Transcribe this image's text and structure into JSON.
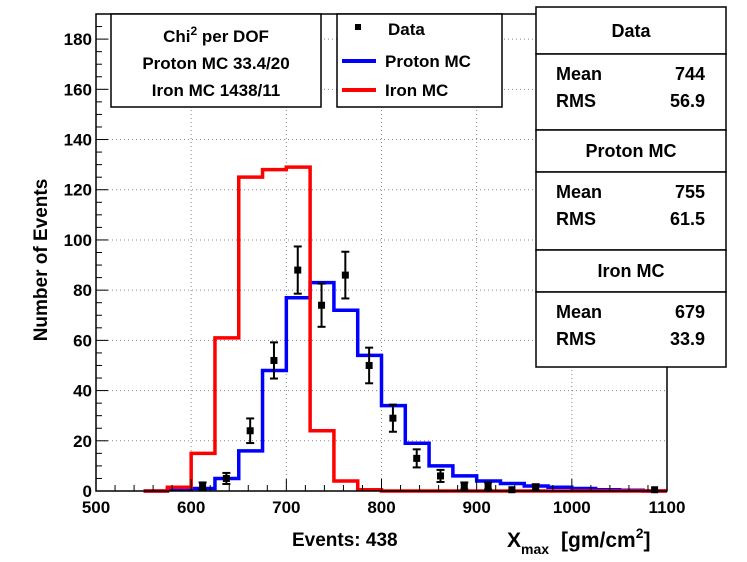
{
  "chart_data": {
    "type": "histogram",
    "xlabel": "X",
    "xlabel_sub": "max",
    "xlabel_unit_prefix": "[gm/cm",
    "xlabel_unit_sup": "2",
    "xlabel_unit_suffix": "]",
    "ylabel": "Number of Events",
    "events_label": "Events: 438",
    "xlim": [
      500,
      1100
    ],
    "ylim": [
      0,
      190
    ],
    "x_ticks": [
      500,
      600,
      700,
      800,
      900,
      1000,
      1100
    ],
    "y_ticks": [
      0,
      20,
      40,
      60,
      80,
      100,
      120,
      140,
      160,
      180
    ],
    "grid": true,
    "bin_edges": [
      550,
      575,
      600,
      625,
      650,
      675,
      700,
      725,
      750,
      775,
      800,
      825,
      850,
      875,
      900,
      925,
      950,
      975,
      1000,
      1025,
      1050,
      1075,
      1100
    ],
    "series": [
      {
        "name": "Data",
        "style": "points",
        "color": "#000000",
        "points": [
          {
            "x": 612,
            "y": 2,
            "err": 1.4
          },
          {
            "x": 637,
            "y": 5,
            "err": 2.2
          },
          {
            "x": 662,
            "y": 24,
            "err": 4.9
          },
          {
            "x": 687,
            "y": 52,
            "err": 7.2
          },
          {
            "x": 712,
            "y": 88,
            "err": 9.4
          },
          {
            "x": 737,
            "y": 74,
            "err": 8.6
          },
          {
            "x": 762,
            "y": 86,
            "err": 9.3
          },
          {
            "x": 787,
            "y": 50,
            "err": 7.1
          },
          {
            "x": 812,
            "y": 29,
            "err": 5.4
          },
          {
            "x": 837,
            "y": 13,
            "err": 3.6
          },
          {
            "x": 862,
            "y": 6,
            "err": 2.4
          },
          {
            "x": 887,
            "y": 2,
            "err": 1.4
          },
          {
            "x": 912,
            "y": 2,
            "err": 1.4
          },
          {
            "x": 937,
            "y": 0.5,
            "err": 0
          },
          {
            "x": 962,
            "y": 1.5,
            "err": 1.2
          },
          {
            "x": 1087,
            "y": 0.5,
            "err": 0
          }
        ]
      },
      {
        "name": "Proton MC",
        "style": "step",
        "color": "#0000ff",
        "values": [
          0,
          0.5,
          1,
          5,
          16,
          48,
          77,
          83,
          72,
          54,
          34,
          19,
          10,
          6,
          4,
          3,
          2,
          1.5,
          1,
          0.5,
          0.3,
          0
        ]
      },
      {
        "name": "Iron MC",
        "style": "step",
        "color": "#ff0000",
        "values": [
          0,
          1.5,
          15,
          61,
          125,
          128,
          129,
          24,
          4,
          0.5,
          0,
          0,
          0,
          0,
          0,
          0,
          0,
          0,
          0,
          0,
          0,
          0
        ]
      }
    ],
    "legend": {
      "placement": "top-center",
      "entries": [
        "Data",
        "Proton MC",
        "Iron MC"
      ]
    },
    "chi2_box": {
      "title_prefix": "Chi",
      "title_sup": "2",
      "title_suffix": " per DOF",
      "lines": [
        "Proton MC 33.4/20",
        "Iron MC 1438/11"
      ]
    },
    "stats": [
      {
        "title": "Data",
        "mean_label": "Mean",
        "mean": "744",
        "rms_label": "RMS",
        "rms": "56.9"
      },
      {
        "title": "Proton MC",
        "mean_label": "Mean",
        "mean": "755",
        "rms_label": "RMS",
        "rms": "61.5"
      },
      {
        "title": "Iron MC",
        "mean_label": "Mean",
        "mean": "679",
        "rms_label": "RMS",
        "rms": "33.9"
      }
    ]
  }
}
